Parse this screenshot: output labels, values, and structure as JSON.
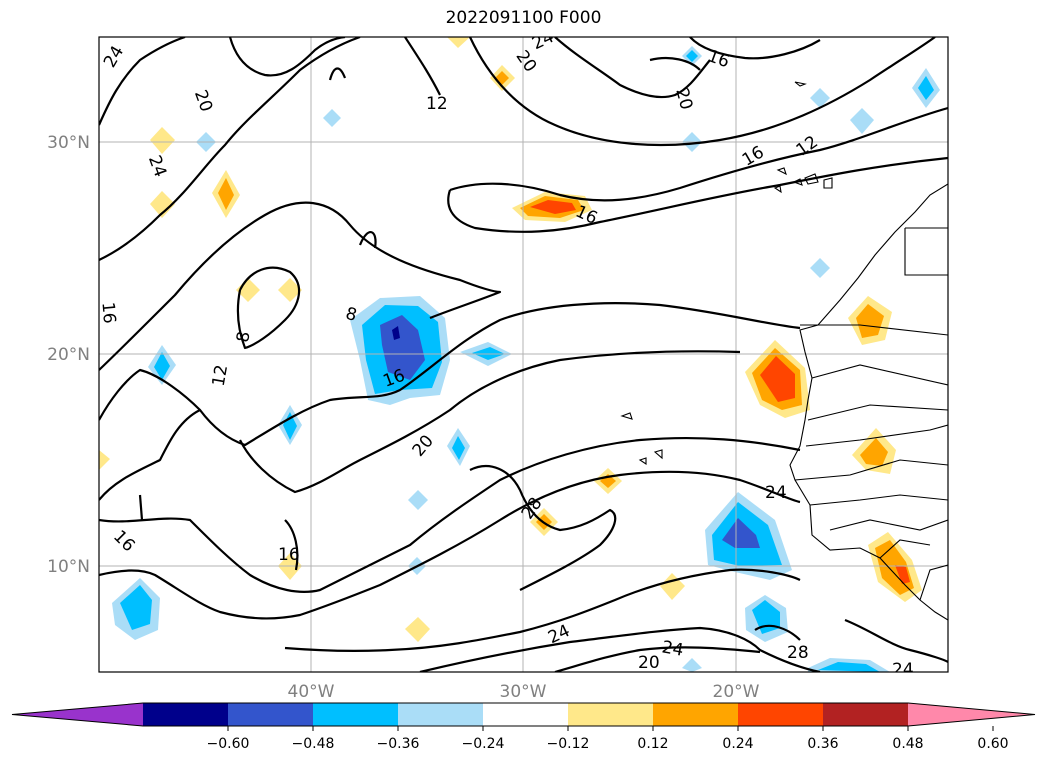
{
  "title": "2022091100 F000",
  "map": {
    "lat_labels": [
      "30°N",
      "20°N",
      "10°N"
    ],
    "lon_labels": [
      "40°W",
      "30°W",
      "20°W"
    ],
    "contour_labels": [
      "24",
      "20",
      "24",
      "20",
      "12",
      "16",
      "24",
      "20",
      "16",
      "12",
      "16",
      "8",
      "8",
      "12",
      "16",
      "16",
      "20",
      "28",
      "16",
      "24",
      "28",
      "24",
      "20",
      "24",
      "24",
      "16"
    ]
  },
  "colorbar": {
    "ticks": [
      "−0.60",
      "−0.48",
      "−0.36",
      "−0.24",
      "−0.12",
      "0.12",
      "0.24",
      "0.36",
      "0.48",
      "0.60"
    ],
    "colors": [
      "#9933cc",
      "#00008b",
      "#3355cc",
      "#00bfff",
      "#aaddf7",
      "#ffffff",
      "#ffe88a",
      "#ffa500",
      "#ff4500",
      "#b22222",
      "#ff88aa"
    ]
  }
}
